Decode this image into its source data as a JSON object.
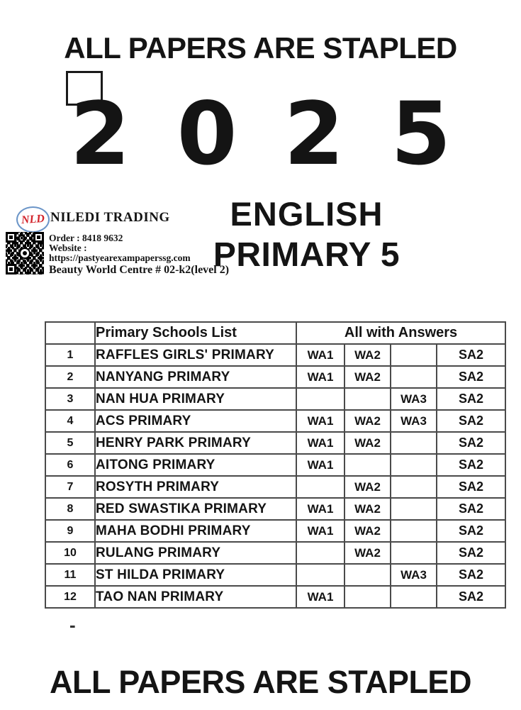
{
  "banner": {
    "top": "ALL PAPERS ARE STAPLED",
    "bottom": "ALL PAPERS ARE STAPLED"
  },
  "year": "2025",
  "title": {
    "subject": "ENGLISH",
    "level": "PRIMARY 5"
  },
  "vendor": {
    "logo": "NLD",
    "name": "NILEDI TRADING",
    "order": "Order : 8418 9632",
    "website_label": "Website :",
    "website_url": "https://pastyearexampaperssg.com",
    "address": "Beauty World Centre # 02-k2(level 2)"
  },
  "stray_mark": "-",
  "colors": {
    "ink": "#141414",
    "logo_red": "#d2232a",
    "logo_oval_blue": "#6b95c8",
    "table_border": "#4a4a4a"
  },
  "icons": {
    "qr": "qr-code-icon"
  },
  "table": {
    "header": {
      "index": "",
      "schools": "Primary Schools List",
      "answers": "All with Answers"
    },
    "rows": [
      {
        "num": "1",
        "school": "RAFFLES GIRLS' PRIMARY",
        "wa1": "WA1",
        "wa2": "WA2",
        "wa3": "",
        "sa2": "SA2"
      },
      {
        "num": "2",
        "school": "NANYANG PRIMARY",
        "wa1": "WA1",
        "wa2": "WA2",
        "wa3": "",
        "sa2": "SA2"
      },
      {
        "num": "3",
        "school": "NAN HUA PRIMARY",
        "wa1": "",
        "wa2": "",
        "wa3": "WA3",
        "sa2": "SA2"
      },
      {
        "num": "4",
        "school": "ACS PRIMARY",
        "wa1": "WA1",
        "wa2": "WA2",
        "wa3": "WA3",
        "sa2": "SA2"
      },
      {
        "num": "5",
        "school": "HENRY PARK PRIMARY",
        "wa1": "WA1",
        "wa2": "WA2",
        "wa3": "",
        "sa2": "SA2"
      },
      {
        "num": "6",
        "school": "AITONG PRIMARY",
        "wa1": "WA1",
        "wa2": "",
        "wa3": "",
        "sa2": "SA2"
      },
      {
        "num": "7",
        "school": "ROSYTH PRIMARY",
        "wa1": "",
        "wa2": "WA2",
        "wa3": "",
        "sa2": "SA2"
      },
      {
        "num": "8",
        "school": "RED SWASTIKA PRIMARY",
        "wa1": "WA1",
        "wa2": "WA2",
        "wa3": "",
        "sa2": "SA2"
      },
      {
        "num": "9",
        "school": "MAHA BODHI PRIMARY",
        "wa1": "WA1",
        "wa2": "WA2",
        "wa3": "",
        "sa2": "SA2"
      },
      {
        "num": "10",
        "school": "RULANG PRIMARY",
        "wa1": "",
        "wa2": "WA2",
        "wa3": "",
        "sa2": "SA2"
      },
      {
        "num": "11",
        "school": "ST HILDA PRIMARY",
        "wa1": "",
        "wa2": "",
        "wa3": "WA3",
        "sa2": "SA2"
      },
      {
        "num": "12",
        "school": "TAO NAN PRIMARY",
        "wa1": "WA1",
        "wa2": "",
        "wa3": "",
        "sa2": "SA2"
      }
    ]
  }
}
